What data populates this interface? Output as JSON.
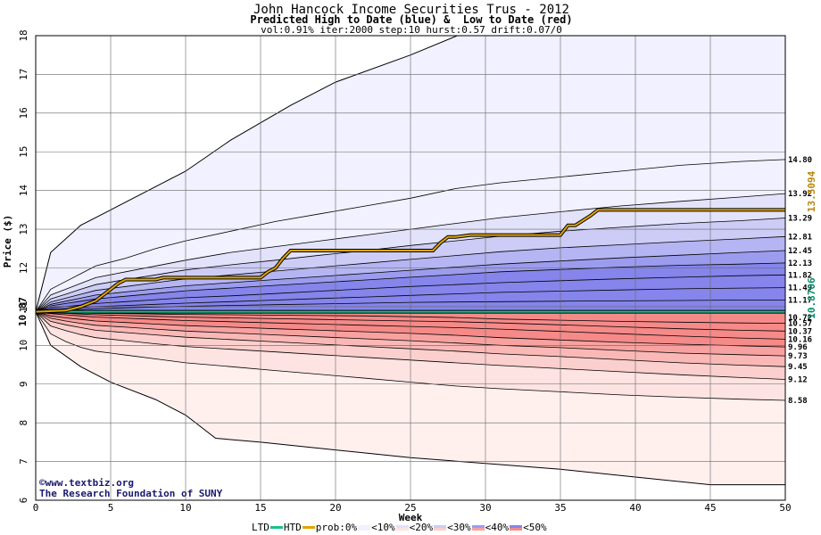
{
  "header": {
    "title": "John Hancock Income Securities Trus - 2012",
    "subtitle": "Predicted High to Date (blue) &  Low to Date (red)",
    "params": "vol:0.91% iter:2000 step:10 hurst:0.57 drift:0.07/0"
  },
  "credits": {
    "line1": "©www.textbiz.org",
    "line2": "The Research Foundation of SUNY"
  },
  "legend": {
    "ltd": "LTD",
    "htd": "HTD",
    "prob": "prob:0%",
    "lt10": "<10%",
    "lt20": "<20%",
    "lt30": "<30%",
    "lt40": "<40%",
    "lt50": "<50%"
  },
  "colors": {
    "ltd_line": "#1abf8f",
    "htd_line": "#e0a400",
    "blue_bands": [
      "#f1f1ff",
      "#e2e2fb",
      "#ccccf6",
      "#b5b5f3",
      "#9c9cee",
      "#8585eb"
    ],
    "red_bands": [
      "#fff0ee",
      "#fde3e1",
      "#fbcfcd",
      "#f9b8b6",
      "#f7a2a0",
      "#f58a88"
    ]
  },
  "chart_data": {
    "type": "area",
    "xlabel": "Week",
    "ylabel": "Price ($)",
    "xlim": [
      0,
      50
    ],
    "ylim": [
      6,
      18
    ],
    "xticks": [
      0,
      5,
      10,
      15,
      20,
      25,
      30,
      35,
      40,
      45,
      50
    ],
    "yticks": [
      6,
      7,
      8,
      9,
      10,
      11,
      12,
      13,
      14,
      15,
      16,
      17,
      18
    ],
    "start_price": 10.87,
    "start_label": "10.87",
    "htd_last": 13.5094,
    "htd_last_label": "13.5094",
    "ltd_last": 10.8706,
    "ltd_last_label": "10.8706",
    "right_labels": [
      "14.80",
      "13.92",
      "13.29",
      "12.81",
      "12.45",
      "12.13",
      "11.82",
      "11.49",
      "11.17",
      "10.72",
      "10.57",
      "10.37",
      "10.16",
      "9.96",
      "9.73",
      "9.45",
      "9.12",
      "8.58"
    ],
    "right_label_values": [
      14.8,
      13.92,
      13.29,
      12.81,
      12.45,
      12.13,
      11.82,
      11.49,
      11.17,
      10.72,
      10.57,
      10.37,
      10.16,
      9.96,
      9.73,
      9.45,
      9.12,
      8.58
    ],
    "outer_upper": {
      "x": [
        0,
        1,
        3,
        5,
        8,
        10,
        13,
        17,
        20,
        25,
        30,
        50
      ],
      "y": [
        10.87,
        12.4,
        13.1,
        13.5,
        14.1,
        14.5,
        15.3,
        16.2,
        16.8,
        17.5,
        18.3,
        18.3
      ]
    },
    "outer_lower": {
      "x": [
        0,
        1,
        3,
        5,
        8,
        10,
        12,
        15,
        20,
        25,
        30,
        35,
        40,
        45,
        50
      ],
      "y": [
        10.87,
        10.0,
        9.45,
        9.05,
        8.6,
        8.2,
        7.6,
        7.5,
        7.3,
        7.1,
        6.95,
        6.8,
        6.6,
        6.4,
        6.4
      ]
    },
    "upper_bands": [
      {
        "prob": "<10%",
        "y": [
          10.87,
          11.45,
          11.65,
          11.85,
          12.05,
          12.25,
          12.5,
          12.7,
          12.95,
          13.2,
          13.4,
          13.6,
          13.8,
          14.05,
          14.2,
          14.35,
          14.5,
          14.65,
          14.75,
          14.8
        ]
      },
      {
        "prob": "<20%",
        "y": [
          10.87,
          11.3,
          11.45,
          11.6,
          11.75,
          11.9,
          12.05,
          12.2,
          12.4,
          12.55,
          12.7,
          12.85,
          13.0,
          13.15,
          13.3,
          13.45,
          13.6,
          13.72,
          13.83,
          13.92
        ]
      },
      {
        "prob": "<30%",
        "y": [
          10.87,
          11.2,
          11.32,
          11.45,
          11.57,
          11.7,
          11.82,
          11.95,
          12.08,
          12.2,
          12.33,
          12.45,
          12.58,
          12.7,
          12.82,
          12.95,
          13.05,
          13.15,
          13.22,
          13.29
        ]
      },
      {
        "prob": "<40%",
        "y": [
          10.87,
          11.12,
          11.22,
          11.32,
          11.42,
          11.52,
          11.62,
          11.72,
          11.82,
          11.92,
          12.02,
          12.12,
          12.22,
          12.32,
          12.42,
          12.52,
          12.6,
          12.68,
          12.75,
          12.81
        ]
      },
      {
        "prob": "<50%",
        "y": [
          10.87,
          11.06,
          11.14,
          11.22,
          11.3,
          11.38,
          11.46,
          11.54,
          11.62,
          11.7,
          11.78,
          11.86,
          11.94,
          12.02,
          12.1,
          12.18,
          12.26,
          12.33,
          12.4,
          12.45
        ]
      },
      {
        "prob": "<50%",
        "y": [
          10.87,
          11.02,
          11.08,
          11.14,
          11.2,
          11.27,
          11.34,
          11.41,
          11.48,
          11.55,
          11.62,
          11.69,
          11.76,
          11.83,
          11.9,
          11.96,
          12.02,
          12.07,
          12.1,
          12.13
        ]
      }
    ],
    "upper_lines": [
      {
        "y": [
          10.87,
          10.97,
          11.0,
          11.04,
          11.08,
          11.13,
          11.18,
          11.23,
          11.28,
          11.34,
          11.4,
          11.46,
          11.52,
          11.57,
          11.62,
          11.67,
          11.72,
          11.76,
          11.8,
          11.82
        ]
      },
      {
        "y": [
          10.87,
          10.93,
          10.95,
          10.98,
          11.0,
          11.03,
          11.06,
          11.09,
          11.13,
          11.17,
          11.21,
          11.25,
          11.29,
          11.33,
          11.37,
          11.4,
          11.43,
          11.46,
          11.48,
          11.49
        ]
      },
      {
        "y": [
          10.87,
          10.9,
          10.92,
          10.93,
          10.95,
          10.97,
          10.99,
          11.01,
          11.03,
          11.05,
          11.07,
          11.09,
          11.11,
          11.12,
          11.13,
          11.14,
          11.15,
          11.16,
          11.17,
          11.17
        ]
      }
    ],
    "lower_bands": [
      {
        "prob": "<10%",
        "y": [
          10.87,
          10.3,
          10.1,
          9.95,
          9.85,
          9.75,
          9.65,
          9.55,
          9.45,
          9.35,
          9.25,
          9.15,
          9.05,
          8.95,
          8.88,
          8.8,
          8.72,
          8.66,
          8.61,
          8.58
        ]
      },
      {
        "prob": "<20%",
        "y": [
          10.87,
          10.5,
          10.38,
          10.28,
          10.2,
          10.12,
          10.04,
          9.97,
          9.9,
          9.83,
          9.76,
          9.69,
          9.62,
          9.55,
          9.48,
          9.4,
          9.32,
          9.24,
          9.17,
          9.12
        ]
      },
      {
        "prob": "<30%",
        "y": [
          10.87,
          10.62,
          10.53,
          10.46,
          10.39,
          10.33,
          10.27,
          10.21,
          10.15,
          10.09,
          10.03,
          9.97,
          9.91,
          9.85,
          9.78,
          9.71,
          9.63,
          9.55,
          9.49,
          9.45
        ]
      },
      {
        "prob": "<40%",
        "y": [
          10.87,
          10.7,
          10.63,
          10.57,
          10.52,
          10.47,
          10.42,
          10.37,
          10.32,
          10.27,
          10.22,
          10.17,
          10.12,
          10.06,
          10.0,
          9.94,
          9.87,
          9.8,
          9.76,
          9.73
        ]
      },
      {
        "prob": "<50%",
        "y": [
          10.87,
          10.76,
          10.71,
          10.67,
          10.63,
          10.59,
          10.55,
          10.51,
          10.47,
          10.43,
          10.39,
          10.35,
          10.31,
          10.26,
          10.2,
          10.14,
          10.08,
          10.03,
          9.99,
          9.96
        ]
      }
    ],
    "lower_lines": [
      {
        "y": [
          10.87,
          10.82,
          10.79,
          10.76,
          10.73,
          10.7,
          10.67,
          10.64,
          10.61,
          10.58,
          10.55,
          10.52,
          10.49,
          10.46,
          10.42,
          10.36,
          10.3,
          10.24,
          10.19,
          10.16
        ]
      },
      {
        "y": [
          10.87,
          10.85,
          10.83,
          10.81,
          10.79,
          10.77,
          10.75,
          10.73,
          10.71,
          10.69,
          10.67,
          10.65,
          10.63,
          10.61,
          10.58,
          10.53,
          10.48,
          10.43,
          10.39,
          10.37
        ]
      },
      {
        "y": [
          10.87,
          10.86,
          10.85,
          10.84,
          10.83,
          10.82,
          10.81,
          10.8,
          10.79,
          10.78,
          10.77,
          10.76,
          10.74,
          10.72,
          10.68,
          10.65,
          10.62,
          10.6,
          10.58,
          10.57
        ]
      }
    ],
    "band_x": [
      0,
      1,
      2,
      3,
      4,
      6,
      8,
      10,
      13,
      16,
      19,
      22,
      25,
      28,
      31,
      35,
      39,
      43,
      47,
      50
    ],
    "htd": {
      "x": [
        0,
        2,
        3,
        4,
        5,
        5.5,
        6,
        8,
        8.5,
        15,
        15.5,
        16,
        16.5,
        17,
        26.5,
        27,
        27.5,
        28,
        29,
        35,
        35.5,
        36,
        37,
        37.5,
        50
      ],
      "y": [
        10.87,
        10.9,
        11.0,
        11.15,
        11.45,
        11.6,
        11.7,
        11.7,
        11.75,
        11.75,
        11.9,
        12.0,
        12.25,
        12.45,
        12.45,
        12.65,
        12.8,
        12.8,
        12.85,
        12.85,
        13.1,
        13.1,
        13.35,
        13.5,
        13.5
      ]
    },
    "ltd": {
      "x": [
        0,
        50
      ],
      "y": [
        10.87,
        10.87
      ]
    }
  }
}
